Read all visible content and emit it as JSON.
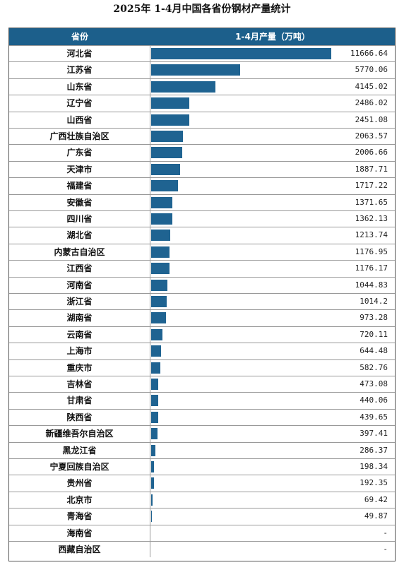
{
  "title": "2025年 1-4月中国各省份钢材产量统计",
  "header": {
    "col1": "省份",
    "col2": "1-4月产量（万吨）"
  },
  "colors": {
    "header_bg": "#1c5f8b",
    "bar": "#1f6391"
  },
  "chart_data": {
    "type": "bar",
    "orientation": "horizontal",
    "title": "2025年 1-4月中国各省份钢材产量统计",
    "xlabel": "1-4月产量（万吨）",
    "ylabel": "省份",
    "categories": [
      "河北省",
      "江苏省",
      "山东省",
      "辽宁省",
      "山西省",
      "广西壮族自治区",
      "广东省",
      "天津市",
      "福建省",
      "安徽省",
      "四川省",
      "湖北省",
      "内蒙古自治区",
      "江西省",
      "河南省",
      "浙江省",
      "湖南省",
      "云南省",
      "上海市",
      "重庆市",
      "吉林省",
      "甘肃省",
      "陕西省",
      "新疆维吾尔自治区",
      "黑龙江省",
      "宁夏回族自治区",
      "贵州省",
      "北京市",
      "青海省",
      "海南省",
      "西藏自治区"
    ],
    "values": [
      11666.64,
      5770.06,
      4145.02,
      2486.02,
      2451.08,
      2063.57,
      2006.66,
      1887.71,
      1717.22,
      1371.65,
      1362.13,
      1213.74,
      1176.95,
      1176.17,
      1044.83,
      1014.2,
      973.28,
      720.11,
      644.48,
      582.76,
      473.08,
      440.06,
      439.65,
      397.41,
      286.37,
      198.34,
      192.35,
      69.42,
      49.87,
      null,
      null
    ],
    "labels": [
      "11666.64",
      "5770.06",
      "4145.02",
      "2486.02",
      "2451.08",
      "2063.57",
      "2006.66",
      "1887.71",
      "1717.22",
      "1371.65",
      "1362.13",
      "1213.74",
      "1176.95",
      "1176.17",
      "1044.83",
      "1014.2",
      "973.28",
      "720.11",
      "644.48",
      "582.76",
      "473.08",
      "440.06",
      "439.65",
      "397.41",
      "286.37",
      "198.34",
      "192.35",
      "69.42",
      "49.87",
      "-",
      "-"
    ],
    "xlim": [
      0,
      11666.64
    ]
  }
}
